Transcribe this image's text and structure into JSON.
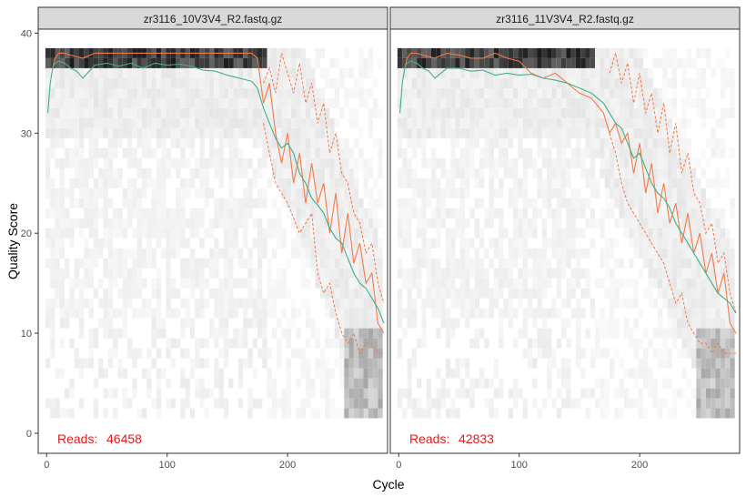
{
  "chart_data": {
    "type": "line",
    "xlabel": "Cycle",
    "ylabel": "Quality Score",
    "xlim": [
      -7,
      283
    ],
    "ylim": [
      -2,
      40.4
    ],
    "x_ticks": [
      "0",
      "100",
      "200"
    ],
    "y_ticks": [
      "0",
      "10",
      "20",
      "30",
      "40"
    ],
    "grid": false,
    "colors": {
      "mean": "#3fb08a",
      "median": "#f07b4a",
      "quartiles": "#f07b4a",
      "reads_label": "#e41a1c",
      "panel_border": "#333333",
      "strip_bg": "#d9d9d9"
    },
    "panels": [
      {
        "title": "zr3116_10V3V4_R2.fastq.gz",
        "reads_label": "Reads:",
        "reads": "46458",
        "mean": {
          "x": [
            1,
            3,
            5,
            7,
            10,
            15,
            20,
            25,
            30,
            40,
            50,
            60,
            70,
            80,
            90,
            100,
            110,
            120,
            130,
            140,
            150,
            160,
            170,
            175,
            180,
            185,
            190,
            195,
            200,
            205,
            210,
            215,
            220,
            225,
            230,
            235,
            240,
            245,
            250,
            255,
            260,
            265,
            270,
            275,
            280
          ],
          "y": [
            32,
            35,
            36.5,
            37,
            37.2,
            37,
            36.5,
            36.2,
            35.5,
            36.8,
            37,
            36.7,
            37,
            36.5,
            37,
            36.8,
            36.9,
            36.7,
            36.3,
            36.2,
            35.8,
            35.5,
            35.2,
            34.5,
            32.5,
            31,
            29.5,
            28.5,
            29,
            28,
            26,
            25,
            23.5,
            22.8,
            22,
            20.5,
            19.5,
            19,
            17.5,
            16,
            15,
            14.5,
            13.5,
            12.5,
            11
          ]
        },
        "median": {
          "x": [
            5,
            7,
            10,
            15,
            20,
            30,
            40,
            50,
            60,
            70,
            80,
            90,
            100,
            110,
            120,
            130,
            140,
            150,
            160,
            170,
            175,
            180,
            185,
            190,
            195,
            200,
            205,
            210,
            215,
            220,
            225,
            230,
            235,
            240,
            245,
            250,
            255,
            260,
            265,
            270,
            275,
            280
          ],
          "y": [
            36.5,
            37.5,
            38,
            38,
            37.8,
            37.5,
            38,
            38,
            38,
            38,
            38,
            38,
            38,
            38,
            38,
            38,
            38,
            38,
            38,
            38,
            37.5,
            33,
            35,
            30,
            27,
            30,
            25,
            28,
            23,
            27,
            23,
            25,
            20,
            24,
            18,
            22,
            17,
            19,
            15,
            16,
            11,
            10
          ]
        },
        "q25": {
          "x": [
            180,
            185,
            190,
            200,
            210,
            220,
            225,
            230,
            235,
            240,
            245,
            250,
            255,
            260,
            265,
            270,
            275,
            280
          ],
          "y": [
            31,
            28,
            25,
            23,
            20,
            22,
            16,
            14,
            15,
            12,
            10,
            9,
            10,
            8,
            9,
            9,
            8,
            8
          ]
        },
        "q75": {
          "x": [
            180,
            185,
            190,
            195,
            200,
            205,
            210,
            215,
            220,
            225,
            230,
            235,
            240,
            245,
            250,
            255,
            260,
            265,
            270,
            275,
            280
          ],
          "y": [
            35,
            36.5,
            34,
            38,
            36,
            34,
            37,
            33,
            35,
            31,
            33,
            28,
            30,
            26,
            25,
            22,
            21,
            18,
            19,
            15,
            13
          ]
        }
      },
      {
        "title": "zr3116_11V3V4_R2.fastq.gz",
        "reads_label": "Reads:",
        "reads": "42833",
        "mean": {
          "x": [
            1,
            3,
            5,
            7,
            10,
            15,
            20,
            25,
            30,
            40,
            50,
            60,
            70,
            80,
            90,
            100,
            110,
            120,
            130,
            140,
            150,
            160,
            170,
            175,
            180,
            185,
            190,
            195,
            200,
            205,
            210,
            215,
            220,
            225,
            230,
            235,
            240,
            245,
            250,
            255,
            260,
            265,
            270,
            275,
            280
          ],
          "y": [
            32,
            35,
            36.5,
            37,
            37.2,
            37,
            36.5,
            36.2,
            35.5,
            36.5,
            36.5,
            36.2,
            36.3,
            35.8,
            36,
            35.8,
            35.9,
            35.5,
            35.3,
            35,
            34.5,
            34,
            33,
            32,
            31,
            30.5,
            29,
            27.5,
            28,
            26.5,
            25,
            24,
            23.5,
            22.5,
            21,
            20,
            19,
            18,
            17,
            16,
            15,
            14,
            13.5,
            13,
            12
          ]
        },
        "median": {
          "x": [
            5,
            7,
            10,
            15,
            20,
            30,
            40,
            50,
            60,
            70,
            80,
            90,
            100,
            110,
            120,
            130,
            140,
            150,
            160,
            170,
            175,
            180,
            185,
            190,
            195,
            200,
            205,
            210,
            215,
            220,
            225,
            230,
            235,
            240,
            245,
            250,
            255,
            260,
            265,
            270,
            275,
            280
          ],
          "y": [
            36.5,
            37.5,
            38,
            38,
            37.8,
            37.5,
            38,
            37.8,
            37.5,
            37.5,
            38,
            37.5,
            37.2,
            36,
            35.5,
            36,
            35,
            34,
            33.5,
            32,
            30,
            31,
            29,
            30,
            26,
            29,
            24,
            27,
            22,
            25,
            21,
            23,
            19,
            22,
            18,
            20,
            16,
            18,
            14,
            16,
            11,
            10
          ]
        },
        "q25": {
          "x": [
            175,
            180,
            185,
            190,
            200,
            210,
            220,
            225,
            230,
            235,
            240,
            245,
            250,
            255,
            260,
            265,
            270,
            275,
            280
          ],
          "y": [
            30,
            28,
            25,
            23,
            21,
            19,
            17,
            15,
            13,
            14,
            11,
            10,
            9,
            9,
            8,
            9,
            8,
            8,
            8
          ]
        },
        "q75": {
          "x": [
            175,
            180,
            185,
            190,
            195,
            200,
            205,
            210,
            215,
            220,
            225,
            230,
            235,
            240,
            245,
            250,
            255,
            260,
            265,
            270,
            275,
            280
          ],
          "y": [
            36,
            38,
            35,
            37,
            33,
            36,
            32,
            34,
            30,
            33,
            28,
            31,
            26,
            28,
            24,
            23,
            20,
            21,
            17,
            18,
            14,
            12
          ]
        }
      }
    ]
  }
}
